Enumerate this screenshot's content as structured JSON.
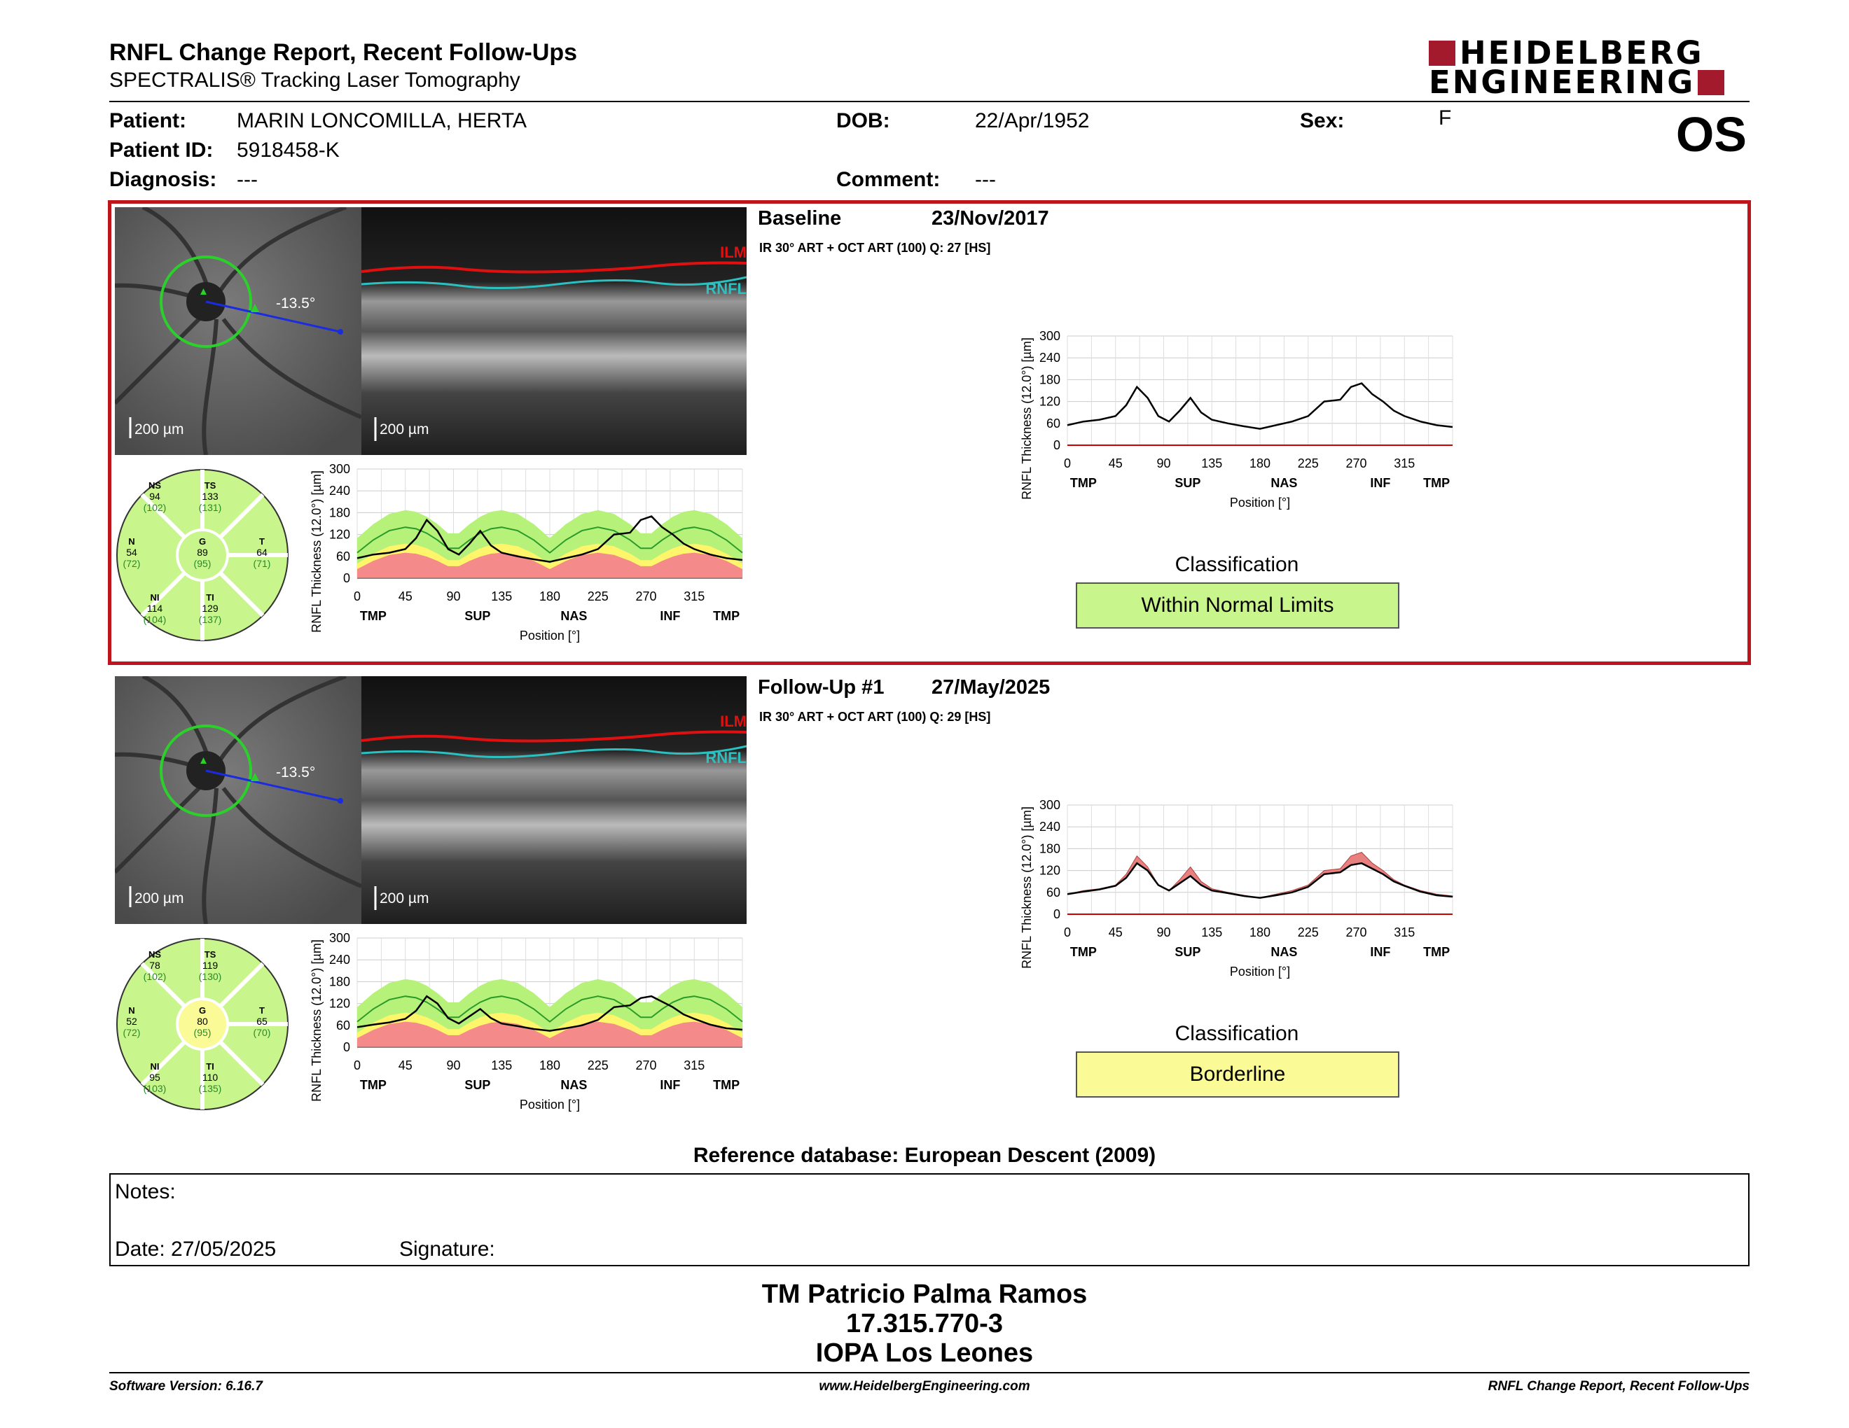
{
  "report": {
    "title": "RNFL Change Report, Recent Follow-Ups",
    "subtitle": "SPECTRALIS® Tracking Laser Tomography",
    "eye": "OS",
    "logo_line1": "HEIDELBERG",
    "logo_line2": "ENGINEERING"
  },
  "patient": {
    "patient_label": "Patient:",
    "name": "MARIN LONCOMILLA, HERTA",
    "id_label": "Patient ID:",
    "id": "5918458-K",
    "diagnosis_label": "Diagnosis:",
    "diagnosis": "---",
    "dob_label": "DOB:",
    "dob": "22/Apr/1952",
    "comment_label": "Comment:",
    "comment": "---",
    "sex_label": "Sex:",
    "sex": "F"
  },
  "exams": [
    {
      "label": "Baseline",
      "date": "23/Nov/2017",
      "meta": "IR 30° ART + OCT ART (100) Q: 27 [HS]",
      "angle": "-13.5°",
      "scale_fundus": "200 µm",
      "scale_oct": "200 µm",
      "ilm": "ILM",
      "rnfl": "RNFL",
      "classification_title": "Classification",
      "classification": "Within Normal Limits",
      "classification_color": "#c8f58c",
      "sectors": {
        "NS": {
          "label": "NS",
          "value": "94",
          "normal": "(102)"
        },
        "TS": {
          "label": "TS",
          "value": "133",
          "normal": "(131)"
        },
        "N": {
          "label": "N",
          "value": "54",
          "normal": "(72)"
        },
        "G": {
          "label": "G",
          "value": "89",
          "normal": "(95)"
        },
        "T": {
          "label": "T",
          "value": "64",
          "normal": "(71)"
        },
        "NI": {
          "label": "NI",
          "value": "114",
          "normal": "(104)"
        },
        "TI": {
          "label": "TI",
          "value": "129",
          "normal": "(137)"
        }
      },
      "g_color": "#c8f58c"
    },
    {
      "label": "Follow-Up #1",
      "date": "27/May/2025",
      "meta": "IR 30° ART + OCT ART (100) Q: 29 [HS]",
      "angle": "-13.5°",
      "scale_fundus": "200 µm",
      "scale_oct": "200 µm",
      "ilm": "ILM",
      "rnfl": "RNFL",
      "classification_title": "Classification",
      "classification": "Borderline",
      "classification_color": "#fafa96",
      "sectors": {
        "NS": {
          "label": "NS",
          "value": "78",
          "normal": "(102)"
        },
        "TS": {
          "label": "TS",
          "value": "119",
          "normal": "(130)"
        },
        "N": {
          "label": "N",
          "value": "52",
          "normal": "(72)"
        },
        "G": {
          "label": "G",
          "value": "80",
          "normal": "(95)"
        },
        "T": {
          "label": "T",
          "value": "65",
          "normal": "(70)"
        },
        "NI": {
          "label": "NI",
          "value": "95",
          "normal": "(103)"
        },
        "TI": {
          "label": "TI",
          "value": "110",
          "normal": "(135)"
        }
      },
      "g_color": "#fafa96"
    }
  ],
  "chart_axes": {
    "ylabel": "RNFL Thickness (12.0°) [µm]",
    "xlabel": "Position [°]",
    "yticks": [
      "300",
      "240",
      "180",
      "120",
      "60",
      "0"
    ],
    "xticks": [
      "0",
      "45",
      "90",
      "135",
      "180",
      "225",
      "270",
      "315"
    ],
    "sectors": [
      "TMP",
      "SUP",
      "NAS",
      "INF",
      "TMP"
    ]
  },
  "chart_data": [
    {
      "type": "line",
      "xlabel": "Position [°]",
      "ylabel": "RNFL Thickness (12.0°) [µm]",
      "ylim": [
        0,
        300
      ],
      "xlim": [
        0,
        360
      ],
      "x": [
        0,
        15,
        30,
        45,
        55,
        65,
        75,
        85,
        95,
        105,
        115,
        125,
        135,
        150,
        165,
        180,
        195,
        210,
        225,
        240,
        255,
        265,
        275,
        285,
        295,
        305,
        315,
        330,
        345,
        360
      ],
      "series": [
        {
          "values": [
            55,
            65,
            70,
            80,
            110,
            160,
            130,
            80,
            65,
            95,
            130,
            90,
            70,
            60,
            52,
            45,
            55,
            65,
            80,
            120,
            125,
            160,
            170,
            140,
            120,
            95,
            80,
            65,
            55,
            50
          ]
        }
      ]
    },
    {
      "type": "line",
      "xlabel": "Position [°]",
      "ylabel": "RNFL Thickness (12.0°) [µm]",
      "ylim": [
        0,
        300
      ],
      "xlim": [
        0,
        360
      ],
      "x": [
        0,
        15,
        30,
        45,
        55,
        65,
        75,
        85,
        95,
        105,
        115,
        125,
        135,
        150,
        165,
        180,
        195,
        210,
        225,
        240,
        255,
        265,
        275,
        285,
        295,
        305,
        315,
        330,
        345,
        360
      ],
      "series": [
        {
          "values": [
            55,
            62,
            68,
            78,
            100,
            140,
            120,
            80,
            65,
            85,
            105,
            80,
            65,
            58,
            50,
            45,
            52,
            60,
            75,
            110,
            115,
            135,
            140,
            125,
            110,
            90,
            78,
            62,
            52,
            48
          ]
        }
      ]
    }
  ]
}
